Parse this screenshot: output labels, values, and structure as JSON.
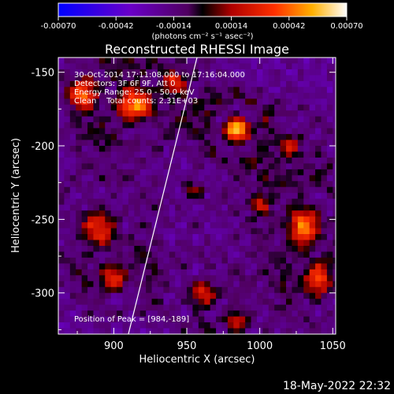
{
  "chart_data": {
    "type": "heatmap",
    "title": "Reconstructed RHESSI Image",
    "xlabel": "Heliocentric X (arcsec)",
    "ylabel": "Heliocentric Y (arcsec)",
    "xlim": [
      862,
      1052
    ],
    "ylim": [
      -328,
      -140
    ],
    "xticks": [
      900,
      950,
      1000,
      1050
    ],
    "yticks": [
      -150,
      -200,
      -250,
      -300
    ],
    "colorbar": {
      "unit_label": "(photons cm⁻² s⁻¹ asec⁻²)",
      "range": [
        -0.0007,
        0.0007
      ],
      "ticks": [
        "-0.00070",
        "-0.00042",
        "-0.00014",
        "0.00014",
        "0.00042",
        "0.00070"
      ]
    },
    "annotations": [
      "30-Oct-2014 17:11:08.000 to 17:16:04.000",
      "Detectors: 3F 6F 9F, Att 0",
      "Energy Range: 25.0 - 50.0 keV",
      "Clean    Total counts: 2.31E+03",
      "Position of Peak = [984,-189]"
    ],
    "peak": {
      "x": 984,
      "y": -189
    },
    "limb_line": {
      "points": [
        [
          910,
          -328
        ],
        [
          957,
          -140
        ]
      ]
    },
    "blobs": [
      {
        "x": 984,
        "y": -189,
        "amp": 1.0,
        "sx": 9,
        "sy": 9
      },
      {
        "x": 915,
        "y": -172,
        "amp": 0.65,
        "sx": 14,
        "sy": 12
      },
      {
        "x": 878,
        "y": -165,
        "amp": 0.6,
        "sx": 12,
        "sy": 12
      },
      {
        "x": 940,
        "y": -158,
        "amp": 0.45,
        "sx": 10,
        "sy": 10
      },
      {
        "x": 1030,
        "y": -255,
        "amp": 0.65,
        "sx": 12,
        "sy": 16
      },
      {
        "x": 1040,
        "y": -290,
        "amp": 0.55,
        "sx": 10,
        "sy": 14
      },
      {
        "x": 1020,
        "y": -200,
        "amp": 0.4,
        "sx": 10,
        "sy": 10
      },
      {
        "x": 890,
        "y": -255,
        "amp": 0.55,
        "sx": 14,
        "sy": 14
      },
      {
        "x": 900,
        "y": -290,
        "amp": 0.45,
        "sx": 10,
        "sy": 10
      },
      {
        "x": 960,
        "y": -300,
        "amp": 0.5,
        "sx": 12,
        "sy": 10
      },
      {
        "x": 985,
        "y": -320,
        "amp": 0.4,
        "sx": 10,
        "sy": 8
      },
      {
        "x": 1000,
        "y": -240,
        "amp": 0.35,
        "sx": 8,
        "sy": 8
      },
      {
        "x": 955,
        "y": -230,
        "amp": 0.3,
        "sx": 8,
        "sy": 8
      }
    ]
  },
  "timestamp": "18-May-2022 22:32"
}
